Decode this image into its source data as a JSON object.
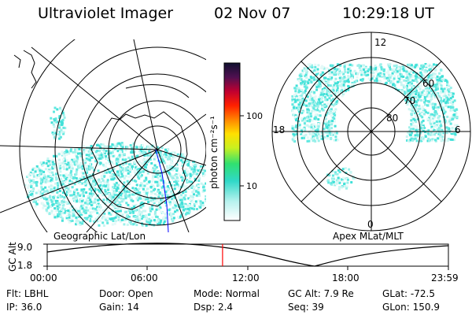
{
  "header": {
    "instrument": "Ultraviolet Imager",
    "date": "02 Nov 07",
    "time": "10:29:18 UT"
  },
  "geo_panel": {
    "label": "Geographic Lat/Lon"
  },
  "mag_panel": {
    "label": "Apex MLat/MLT",
    "mlt_labels": {
      "top": "12",
      "left": "18",
      "right": "6",
      "bottom": "0"
    },
    "lat_labels": [
      "60",
      "70",
      "80"
    ]
  },
  "colorbar": {
    "unit_label": "photon cm⁻²s⁻¹",
    "ticks": [
      "100",
      "10"
    ]
  },
  "altitude_strip": {
    "axis_label": "GC Alt",
    "y_ticks": [
      "9.0",
      "1.8"
    ],
    "x_ticks": [
      "00:00",
      "06:00",
      "12:00",
      "18:00",
      "23:59"
    ],
    "marker_time_hours": 10.49
  },
  "info": {
    "row1": [
      {
        "label": "Flt:",
        "value": "LBHL"
      },
      {
        "label": "Door:",
        "value": "Open"
      },
      {
        "label": "Mode:",
        "value": "Normal"
      },
      {
        "label": "GC Alt:",
        "value": "7.9 Re"
      },
      {
        "label": "GLat:",
        "value": "-72.5"
      }
    ],
    "row2": [
      {
        "label": "IP:",
        "value": "36.0"
      },
      {
        "label": "Gain:",
        "value": "14"
      },
      {
        "label": "Dsp:",
        "value": "2.4"
      },
      {
        "label": "Seq:",
        "value": "39"
      },
      {
        "label": "GLon:",
        "value": "150.9"
      }
    ]
  },
  "colors": {
    "aurora": "#40e0d8",
    "marker": "#ff0000",
    "meridian": "#0000ff"
  }
}
